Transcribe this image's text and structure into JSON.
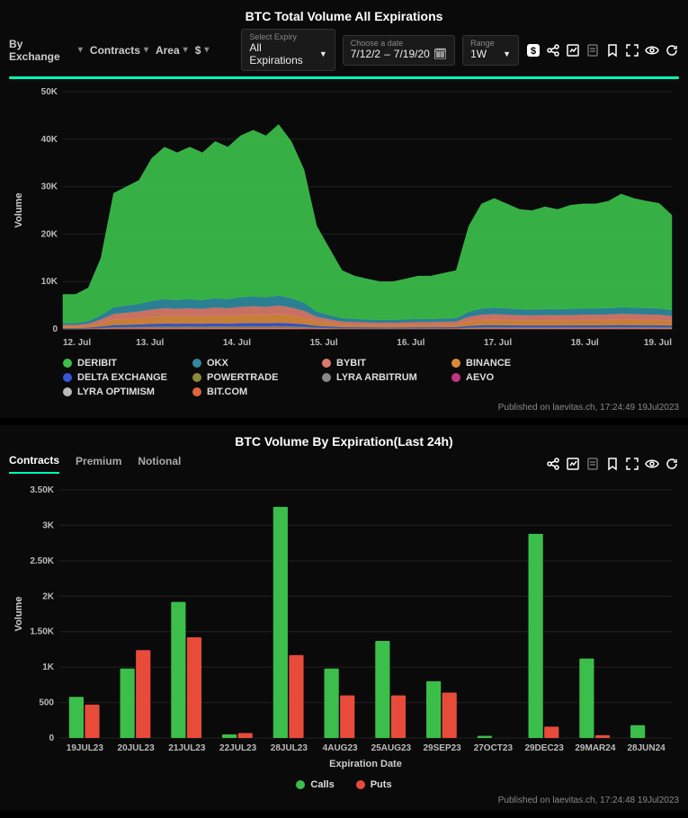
{
  "panel1": {
    "title": "BTC Total Volume All Expirations",
    "dropdowns": {
      "group": "By Exchange",
      "metric": "Contracts",
      "chartType": "Area",
      "currency": "$"
    },
    "expiry": {
      "label": "Select Expiry",
      "value": "All Expirations"
    },
    "date": {
      "label": "Choose a date",
      "from": "7/12/2",
      "to": "7/19/20"
    },
    "range": {
      "label": "Range",
      "value": "1W"
    },
    "accent_color": "#14e0b8",
    "published": "Published on laevitas.ch, 17:24:49 19Jul2023",
    "chart": {
      "type": "area-stacked",
      "background": "#0a0a0a",
      "grid_color": "#222222",
      "ylabel": "Volume",
      "ylim": [
        0,
        50000
      ],
      "yticks": [
        0,
        10000,
        20000,
        30000,
        40000,
        50000
      ],
      "ytick_labels": [
        "0",
        "10K",
        "20K",
        "30K",
        "40K",
        "50K"
      ],
      "xticks": [
        "12. Jul",
        "13. Jul",
        "14. Jul",
        "15. Jul",
        "16. Jul",
        "17. Jul",
        "18. Jul",
        "19. Jul"
      ],
      "series": [
        {
          "name": "DERIBIT",
          "color": "#3bbf4a",
          "points": [
            6000,
            6000,
            7000,
            12000,
            24000,
            25000,
            26000,
            30000,
            32000,
            31000,
            32000,
            31000,
            33000,
            32000,
            34000,
            35000,
            34000,
            36000,
            33000,
            28000,
            18000,
            14000,
            10000,
            9000,
            8500,
            8000,
            8000,
            8500,
            9000,
            9000,
            9500,
            10000,
            18000,
            22000,
            23000,
            22000,
            21000,
            20800,
            21500,
            21000,
            21800,
            22000,
            22000,
            22500,
            23800,
            23000,
            22500,
            22100,
            20000
          ]
        },
        {
          "name": "OKX",
          "color": "#2f8aa0",
          "points": [
            400,
            400,
            500,
            900,
            1400,
            1500,
            1600,
            1800,
            1900,
            1850,
            1900,
            1850,
            1950,
            1900,
            2000,
            2050,
            2000,
            2100,
            1950,
            1700,
            1100,
            900,
            700,
            650,
            620,
            600,
            600,
            620,
            650,
            650,
            680,
            700,
            1100,
            1300,
            1350,
            1300,
            1250,
            1240,
            1270,
            1250,
            1280,
            1300,
            1300,
            1320,
            1380,
            1350,
            1330,
            1310,
            1200
          ]
        },
        {
          "name": "BYBIT",
          "color": "#d97b6b",
          "points": [
            350,
            350,
            450,
            800,
            1250,
            1350,
            1450,
            1600,
            1700,
            1650,
            1700,
            1650,
            1750,
            1700,
            1800,
            1850,
            1800,
            1900,
            1750,
            1500,
            1000,
            800,
            620,
            580,
            550,
            530,
            530,
            550,
            580,
            580,
            600,
            620,
            1000,
            1180,
            1220,
            1180,
            1130,
            1120,
            1150,
            1130,
            1160,
            1180,
            1180,
            1200,
            1250,
            1220,
            1200,
            1180,
            1080
          ]
        },
        {
          "name": "BINANCE",
          "color": "#d8893a",
          "points": [
            300,
            300,
            400,
            700,
            1100,
            1200,
            1300,
            1450,
            1550,
            1500,
            1550,
            1500,
            1600,
            1550,
            1650,
            1700,
            1650,
            1750,
            1600,
            1350,
            900,
            720,
            560,
            520,
            490,
            470,
            470,
            490,
            520,
            520,
            540,
            560,
            900,
            1060,
            1100,
            1060,
            1020,
            1010,
            1030,
            1020,
            1040,
            1060,
            1060,
            1080,
            1130,
            1100,
            1080,
            1060,
            970
          ]
        },
        {
          "name": "DELTA EXCHANGE",
          "color": "#3857d6",
          "points": [
            120,
            120,
            160,
            280,
            430,
            460,
            500,
            560,
            600,
            580,
            600,
            580,
            620,
            600,
            640,
            660,
            640,
            680,
            620,
            520,
            350,
            280,
            220,
            200,
            190,
            180,
            180,
            190,
            200,
            200,
            210,
            220,
            350,
            410,
            430,
            410,
            400,
            395,
            400,
            395,
            405,
            410,
            410,
            420,
            440,
            430,
            420,
            410,
            380
          ]
        },
        {
          "name": "POWERTRADE",
          "color": "#8a8a3a",
          "points": [
            40,
            40,
            55,
            95,
            150,
            160,
            170,
            190,
            200,
            195,
            200,
            195,
            210,
            200,
            215,
            220,
            215,
            230,
            210,
            180,
            120,
            100,
            75,
            70,
            65,
            62,
            62,
            65,
            70,
            70,
            72,
            75,
            120,
            140,
            145,
            140,
            135,
            133,
            136,
            133,
            137,
            140,
            140,
            142,
            148,
            145,
            142,
            140,
            130
          ]
        },
        {
          "name": "LYRA ARBITRUM",
          "color": "#888888",
          "points": [
            20,
            20,
            28,
            48,
            75,
            80,
            85,
            95,
            100,
            98,
            100,
            98,
            105,
            100,
            108,
            110,
            108,
            115,
            105,
            90,
            60,
            50,
            38,
            35,
            33,
            31,
            31,
            33,
            35,
            35,
            36,
            38,
            60,
            70,
            73,
            70,
            68,
            67,
            68,
            67,
            69,
            70,
            70,
            71,
            74,
            73,
            71,
            70,
            65
          ]
        },
        {
          "name": "AEVO",
          "color": "#c13584",
          "points": [
            15,
            15,
            20,
            35,
            55,
            58,
            62,
            70,
            73,
            71,
            73,
            71,
            76,
            73,
            78,
            80,
            78,
            84,
            76,
            65,
            44,
            36,
            28,
            26,
            24,
            23,
            23,
            24,
            26,
            26,
            27,
            28,
            44,
            51,
            53,
            51,
            49,
            48,
            49,
            48,
            50,
            51,
            51,
            52,
            54,
            53,
            52,
            51,
            47
          ]
        },
        {
          "name": "LYRA OPTIMISM",
          "color": "#bbbbbb",
          "points": [
            10,
            10,
            14,
            24,
            38,
            40,
            43,
            48,
            50,
            49,
            50,
            49,
            52,
            50,
            54,
            55,
            54,
            58,
            52,
            45,
            30,
            25,
            19,
            18,
            17,
            16,
            16,
            17,
            18,
            18,
            18,
            19,
            30,
            35,
            37,
            35,
            34,
            33,
            34,
            33,
            34,
            35,
            35,
            36,
            37,
            36,
            36,
            35,
            33
          ]
        },
        {
          "name": "BIT.COM",
          "color": "#e0653a",
          "points": [
            30,
            30,
            40,
            70,
            110,
            115,
            125,
            140,
            150,
            145,
            150,
            145,
            155,
            150,
            160,
            165,
            160,
            170,
            155,
            130,
            90,
            72,
            55,
            52,
            49,
            47,
            47,
            49,
            52,
            52,
            54,
            55,
            90,
            105,
            108,
            105,
            100,
            99,
            101,
            99,
            102,
            105,
            105,
            106,
            111,
            108,
            106,
            105,
            96
          ]
        }
      ]
    }
  },
  "panel2": {
    "title": "BTC Volume By Expiration(Last 24h)",
    "tabs": [
      "Contracts",
      "Premium",
      "Notional"
    ],
    "active_tab": "Contracts",
    "published": "Published on laevitas.ch, 17:24:48 19Jul2023",
    "chart": {
      "type": "bar-grouped",
      "background": "#0a0a0a",
      "grid_color": "#222222",
      "ylabel": "Volume",
      "xlabel": "Expiration Date",
      "ylim": [
        0,
        3500
      ],
      "yticks": [
        0,
        500,
        1000,
        1500,
        2000,
        2500,
        3000,
        3500
      ],
      "ytick_labels": [
        "0",
        "500",
        "1K",
        "1.50K",
        "2K",
        "2.50K",
        "3K",
        "3.50K"
      ],
      "categories": [
        "19JUL23",
        "20JUL23",
        "21JUL23",
        "22JUL23",
        "28JUL23",
        "4AUG23",
        "25AUG23",
        "29SEP23",
        "27OCT23",
        "29DEC23",
        "29MAR24",
        "28JUN24"
      ],
      "series": [
        {
          "name": "Calls",
          "color": "#3bbf4a",
          "values": [
            580,
            980,
            1920,
            50,
            3260,
            980,
            1370,
            800,
            30,
            2880,
            1120,
            180
          ]
        },
        {
          "name": "Puts",
          "color": "#e84b3a",
          "values": [
            470,
            1240,
            1420,
            70,
            1170,
            600,
            600,
            640,
            0,
            160,
            40,
            0
          ]
        }
      ],
      "bar_group_width": 0.62,
      "label_fontsize": 10,
      "title_fontsize": 14
    }
  },
  "icons": {
    "dollar": "$",
    "share": "share-icon",
    "imgdl": "image-download-icon",
    "csv": "csv-icon",
    "bookmark": "bookmark-icon",
    "expand": "expand-icon",
    "eye": "eye-icon",
    "refresh": "refresh-icon",
    "calendar": "calendar-icon"
  }
}
